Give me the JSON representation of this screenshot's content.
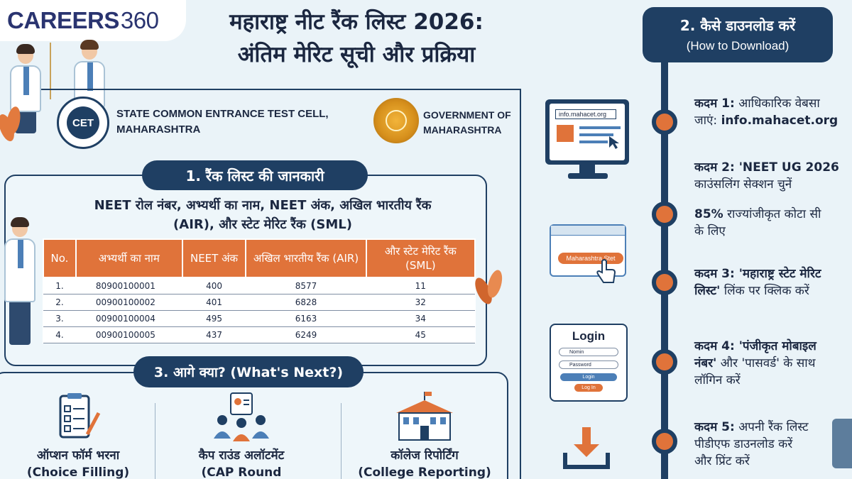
{
  "brand": {
    "name_a": "CAREERS",
    "name_b": "360"
  },
  "title": {
    "line1": "महाराष्ट्र नीट रैंक लिस्ट 2026:",
    "line2": "अंतिम मेरिट सूची और प्रक्रिया"
  },
  "org": {
    "cet_logo_text": "CET",
    "cet_line1": "STATE COMMON ENTRANCE TEST CELL,",
    "cet_line2": "MAHARASHTRA",
    "gov_line1": "GOVERNMENT OF",
    "gov_line2": "MAHARASHTRA"
  },
  "section1": {
    "heading": "1. रैंक लिस्ट की जानकारी",
    "info_line1": "NEET रोल नंबर, अभ्यर्थी का नाम, NEET अंक, अखिल भारतीय रैंक",
    "info_line2": "(AIR), और स्टेट मेरिट रैंक (SML)",
    "table": {
      "headers": [
        "No.",
        "अभ्यर्थी का नाम",
        "NEET अंक",
        "अखिल भारतीय रैंक (AIR)",
        "और स्टेट मेरिट रैंक (SML)"
      ],
      "rows": [
        [
          "1.",
          "80900100001",
          "400",
          "8577",
          "11"
        ],
        [
          "2.",
          "00900100002",
          "401",
          "6828",
          "32"
        ],
        [
          "3.",
          "00900100004",
          "495",
          "6163",
          "34"
        ],
        [
          "4.",
          "00900100005",
          "437",
          "6249",
          "45"
        ]
      ]
    }
  },
  "section3": {
    "heading": "3. आगे क्या? (What's Next?)",
    "steps": [
      {
        "label_hi": "ऑप्शन फॉर्म भरना",
        "label_en": "(Choice Filling)",
        "icon": "clipboard-pen-icon"
      },
      {
        "label_hi": "कैप राउंड अलॉटमेंट",
        "label_en": "(CAP Round Allotment)",
        "icon": "people-group-icon"
      },
      {
        "label_hi": "कॉलेज रिपोर्टिंग",
        "label_en": "(College Reporting)",
        "icon": "college-building-icon"
      }
    ]
  },
  "section2": {
    "heading": "2. कैसे डाउनलोड करें",
    "subheading": "(How to Download)",
    "steps": [
      {
        "bold": "कदम 1:",
        "text_a": " आधिकारिक वेबसा",
        "text_b": "जाएं: ",
        "bold_b": "info.mahacet.org"
      },
      {
        "bold": "कदम 2: 'NEET UG 2026",
        "text_a": "",
        "text_b": "काउंसलिंग सेक्शन चुनें",
        "bold_b": ""
      },
      {
        "bold": "85%",
        "text_a": " राज्यांजीकृत कोटा सी",
        "text_b": "के लिए",
        "bold_b": ""
      },
      {
        "bold": "कदम 3: 'महाराष्ट्र स्टेट मेरिट",
        "text_a": "",
        "text_b": "लिस्ट'",
        "bold_b": " लिंक पर क्लिक करें"
      },
      {
        "bold": "कदम 4: 'पंजीकृत मोबाइल",
        "text_a": "",
        "text_b": "नंबर'",
        "bold_b": " और 'पासवर्ड' के साथ"
      },
      {
        "bold": "",
        "text_a": "लॉगिन करें",
        "text_b": "",
        "bold_b": ""
      },
      {
        "bold": "कदम 5:",
        "text_a": " अपनी रैंक लिस्ट",
        "text_b": "पीडीएफ डाउनलोड करें",
        "bold_b": ""
      },
      {
        "bold": "",
        "text_a": "और प्रिंट करें",
        "text_b": "",
        "bold_b": ""
      }
    ],
    "illustrations": {
      "url_text": "info.mahacet.org",
      "button_text": "Maharashtra Stet",
      "login_title": "Login",
      "field_name": "Nomin",
      "field_password": "Password",
      "login_btn": "Login",
      "login_in": "Log In"
    }
  },
  "colors": {
    "navy": "#1f3f63",
    "orange": "#e0733a",
    "background": "#eaf3f8"
  }
}
